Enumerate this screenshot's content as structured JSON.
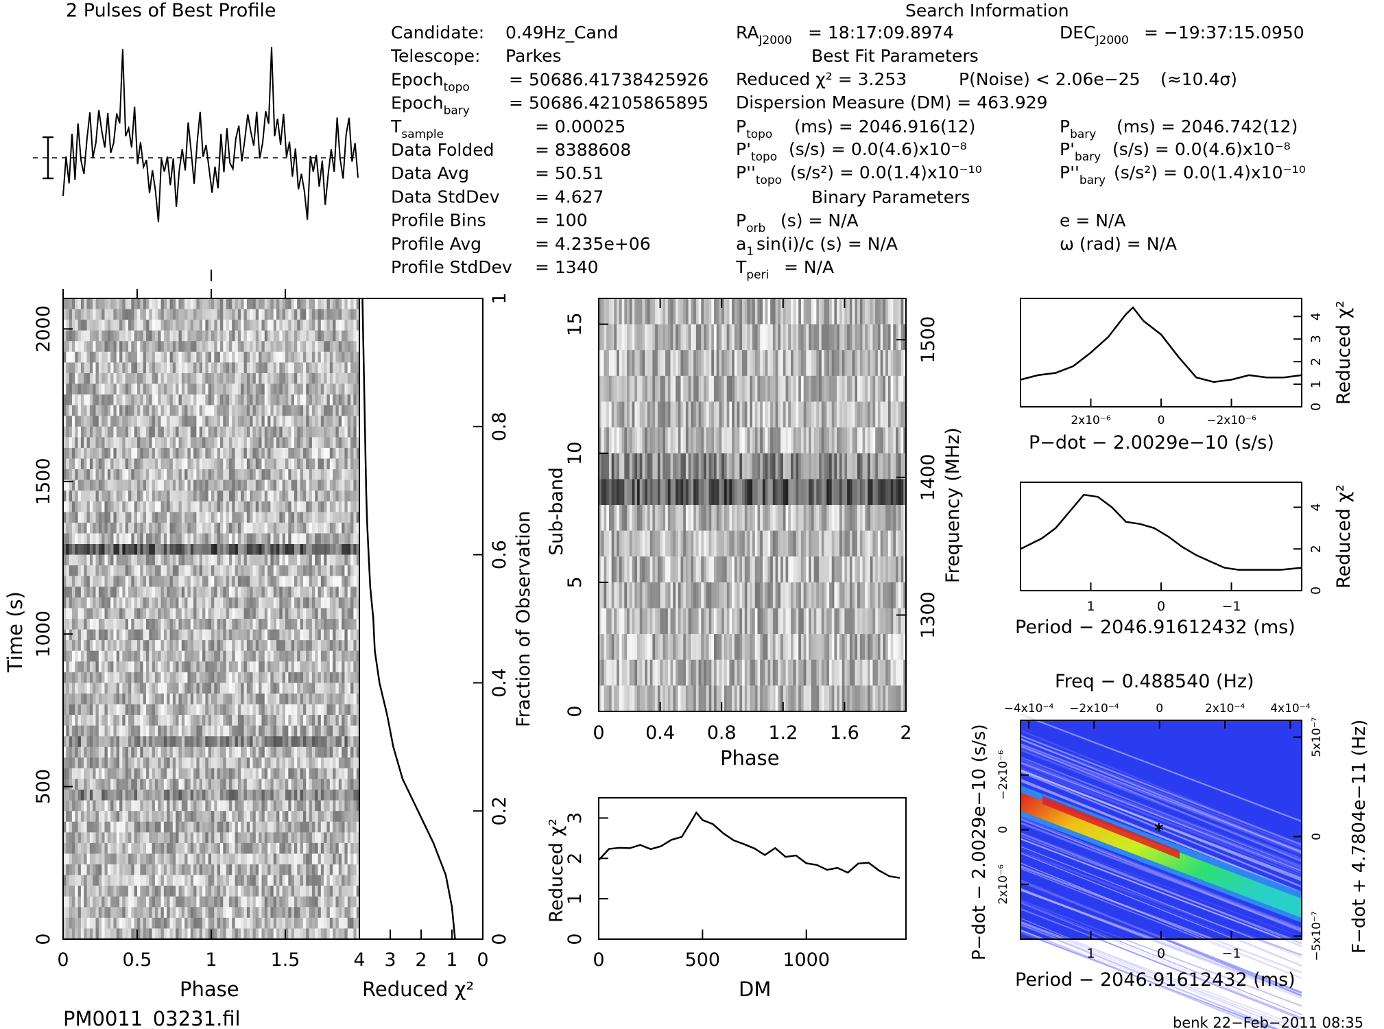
{
  "profile": {
    "title": "2 Pulses of Best Profile",
    "values": [
      0.18,
      0.34,
      0.22,
      0.46,
      0.28,
      0.52,
      0.36,
      0.31,
      0.49,
      0.57,
      0.33,
      0.44,
      0.62,
      0.5,
      0.41,
      0.58,
      0.37,
      0.45,
      0.6,
      0.52,
      0.95,
      0.48,
      0.55,
      0.4,
      0.61,
      0.34,
      0.47,
      0.28,
      0.38,
      0.18,
      0.3,
      0.22,
      0.05,
      0.35,
      0.27,
      0.4,
      0.21,
      0.33,
      0.12,
      0.29,
      0.42,
      0.31,
      0.55,
      0.38,
      0.24,
      0.47,
      0.58,
      0.36,
      0.44,
      0.27,
      0.18,
      0.34,
      0.22,
      0.46,
      0.28,
      0.52,
      0.36,
      0.31,
      0.49,
      0.57,
      0.33,
      0.44,
      0.62,
      0.5,
      0.41,
      0.58,
      0.37,
      0.45,
      0.6,
      0.52,
      0.95,
      0.48,
      0.55,
      0.4,
      0.61,
      0.34,
      0.47,
      0.28,
      0.38,
      0.18,
      0.3,
      0.22,
      0.05,
      0.35,
      0.27,
      0.4,
      0.21,
      0.33,
      0.12,
      0.29,
      0.42,
      0.31,
      0.55,
      0.38,
      0.24,
      0.47,
      0.58,
      0.36,
      0.44,
      0.27
    ]
  },
  "info": {
    "col1": [
      {
        "label": "Candidate:",
        "value": "0.49Hz_Cand"
      },
      {
        "label": "Telescope:",
        "value": "Parkes"
      },
      {
        "label": "Epoch",
        "sub": "topo",
        "value": "= 50686.41738425926"
      },
      {
        "label": "Epoch",
        "sub": "bary",
        "value": "= 50686.42105865895"
      },
      {
        "label": "T",
        "sub": "sample",
        "value": "=   0.00025"
      },
      {
        "label": "Data Folded",
        "value": "=   8388608"
      },
      {
        "label": "Data Avg",
        "value": "=   50.51"
      },
      {
        "label": "Data StdDev",
        "value": "=   4.627"
      },
      {
        "label": "Profile Bins",
        "value": "=   100"
      },
      {
        "label": "Profile Avg",
        "value": "=   4.235e+06"
      },
      {
        "label": "Profile StdDev",
        "value": "=   1340"
      }
    ],
    "search_title": "Search Information",
    "ra_label": "RA",
    "ra_sub": "J2000",
    "ra_value": "= 18:17:09.8974",
    "dec_label": "DEC",
    "dec_sub": "J2000",
    "dec_value": "= −19:37:15.0950",
    "best_fit_title": "Best Fit Parameters",
    "reduced_chi2": "Reduced χ² = 3.253",
    "p_noise": "P(Noise) < 2.06e−25",
    "sigma": "(≈10.4σ)",
    "dm_line": "Dispersion Measure (DM) = 463.929",
    "p_topo": "P",
    "p_topo_sub": "topo",
    "p_topo_value": "(ms) =  2046.916(12)",
    "p_bary": "P",
    "p_bary_sub": "bary",
    "p_bary_value": "(ms) =  2046.742(12)",
    "pd_topo": "P'",
    "pd_topo_sub": "topo",
    "pd_topo_value": "(s/s) = 0.0(4.6)x10⁻⁸",
    "pd_bary": "P'",
    "pd_bary_sub": "bary",
    "pd_bary_value": "(s/s) = 0.0(4.6)x10⁻⁸",
    "pdd_topo": "P''",
    "pdd_topo_sub": "topo",
    "pdd_topo_value": "(s/s²) = 0.0(1.4)x10⁻¹⁰",
    "pdd_bary": "P''",
    "pdd_bary_sub": "bary",
    "pdd_bary_value": "(s/s²) = 0.0(1.4)x10⁻¹⁰",
    "binary_title": "Binary Parameters",
    "porb": "P",
    "porb_sub": "orb",
    "porb_value": "(s) = N/A",
    "asini": "a",
    "asini_sub": "1",
    "asini_value": "sin(i)/c (s) = N/A",
    "tperi": "T",
    "tperi_sub": "peri",
    "tperi_value": "= N/A",
    "ecc": "e = N/A",
    "omega": "ω (rad) = N/A"
  },
  "time_phase": {
    "ylabel": "Time (s)",
    "xlabel": "Phase",
    "yticks": [
      "0",
      "500",
      "1000",
      "1500",
      "2000"
    ],
    "xticks": [
      "0",
      "0.5",
      "1",
      "1.5"
    ]
  },
  "time_chi2": {
    "xlabel": "Reduced χ²",
    "ylabel": "Fraction of Observation",
    "xticks": [
      "4",
      "3",
      "2",
      "1",
      "0"
    ],
    "yticks": [
      "0",
      "0.2",
      "0.4",
      "0.6",
      "0.8",
      "1"
    ],
    "fraction": [
      0.0,
      0.05,
      0.1,
      0.15,
      0.2,
      0.25,
      0.3,
      0.35,
      0.4,
      0.45,
      0.5,
      0.55,
      0.6,
      0.65,
      0.7,
      0.75,
      0.8,
      0.85,
      0.9,
      0.95,
      1.0
    ],
    "chi2": [
      0.9,
      1.0,
      1.2,
      1.6,
      2.1,
      2.6,
      2.9,
      3.1,
      3.35,
      3.5,
      3.55,
      3.65,
      3.7,
      3.75,
      3.78,
      3.8,
      3.82,
      3.84,
      3.86,
      3.88,
      3.9
    ]
  },
  "subband": {
    "ylabel": "Sub-band",
    "xlabel": "Phase",
    "y2label": "Frequency (MHz)",
    "xticks": [
      "0",
      "0.4",
      "0.8",
      "1.2",
      "1.6",
      "2"
    ],
    "yticks": [
      "0",
      "5",
      "10",
      "15"
    ],
    "y2ticks": [
      "1300",
      "1400",
      "1500"
    ]
  },
  "dm_plot": {
    "xlabel": "DM",
    "ylabel": "Reduced χ²",
    "xticks": [
      "0",
      "500",
      "1000"
    ],
    "yticks": [
      "0",
      "1",
      "2",
      "3"
    ],
    "x": [
      0,
      50,
      100,
      150,
      200,
      250,
      300,
      350,
      400,
      450,
      470,
      500,
      550,
      600,
      650,
      700,
      750,
      800,
      850,
      900,
      950,
      1000,
      1050,
      1100,
      1150,
      1200,
      1250,
      1300,
      1350,
      1400,
      1450
    ],
    "y": [
      2.0,
      2.2,
      2.3,
      2.2,
      2.3,
      2.25,
      2.3,
      2.5,
      2.6,
      2.9,
      3.2,
      3.0,
      2.85,
      2.6,
      2.5,
      2.3,
      2.25,
      2.1,
      2.2,
      2.1,
      2.0,
      1.9,
      1.8,
      1.7,
      1.75,
      1.65,
      1.8,
      1.9,
      1.7,
      1.6,
      1.55
    ]
  },
  "pdot_plot": {
    "xlabel": "P−dot − 2.0029e−10 (s/s)",
    "ylabel": "Reduced χ²",
    "xticks": [
      "2x10⁻⁶",
      "0",
      "−2x10⁻⁶"
    ],
    "yticks": [
      "0",
      "1",
      "2",
      "3",
      "4"
    ],
    "x": [
      4,
      3.5,
      3,
      2.5,
      2,
      1.5,
      1.0,
      0.8,
      0.5,
      0,
      -0.5,
      -1,
      -1.5,
      -2,
      -2.5,
      -3,
      -3.5,
      -4
    ],
    "y": [
      1.2,
      1.4,
      1.5,
      1.8,
      2.4,
      3.1,
      4.1,
      4.4,
      3.8,
      3.2,
      2.2,
      1.3,
      1.1,
      1.2,
      1.4,
      1.3,
      1.3,
      1.4
    ]
  },
  "period_plot": {
    "xlabel": "Period − 2046.91612432 (ms)",
    "ylabel": "Reduced χ²",
    "xticks": [
      "1",
      "0",
      "−1"
    ],
    "yticks": [
      "0",
      "2",
      "4"
    ],
    "x": [
      2,
      1.7,
      1.5,
      1.3,
      1.1,
      0.9,
      0.7,
      0.5,
      0.3,
      0.1,
      -0.1,
      -0.3,
      -0.5,
      -0.7,
      -0.9,
      -1.1,
      -1.3,
      -1.5,
      -1.7,
      -2
    ],
    "y": [
      2.0,
      2.5,
      3.0,
      3.8,
      4.6,
      4.5,
      4.0,
      3.3,
      3.2,
      3.0,
      2.6,
      2.1,
      1.7,
      1.4,
      1.1,
      1.0,
      1.0,
      1.0,
      1.0,
      1.1
    ]
  },
  "contour": {
    "top_label": "Freq − 0.488540 (Hz)",
    "top_ticks": [
      "−4x10⁻⁴",
      "−2x10⁻⁴",
      "0",
      "2x10⁻⁴",
      "4x10⁻⁴"
    ],
    "xlabel": "Period − 2046.91612432 (ms)",
    "xticks": [
      "1",
      "0",
      "−1"
    ],
    "ylabel": "P−dot − 2.0029e−10 (s/s)",
    "yticks": [
      "−2x10⁻⁶",
      "0",
      "2x10⁻⁶"
    ],
    "y2label": "F−dot + 4.7804e−11 (Hz)",
    "y2ticks": [
      "5x10⁻⁷",
      "0",
      "−5x10⁻⁷"
    ],
    "colors": [
      "#1010c0",
      "#2b3cf0",
      "#2f8ef0",
      "#29d0c8",
      "#30e070",
      "#c8f020",
      "#f0c018",
      "#f06020",
      "#e02020"
    ]
  },
  "footer": {
    "filename": "PM0011_03231.fil",
    "stamp": "benk  22−Feb−2011 08:35"
  }
}
